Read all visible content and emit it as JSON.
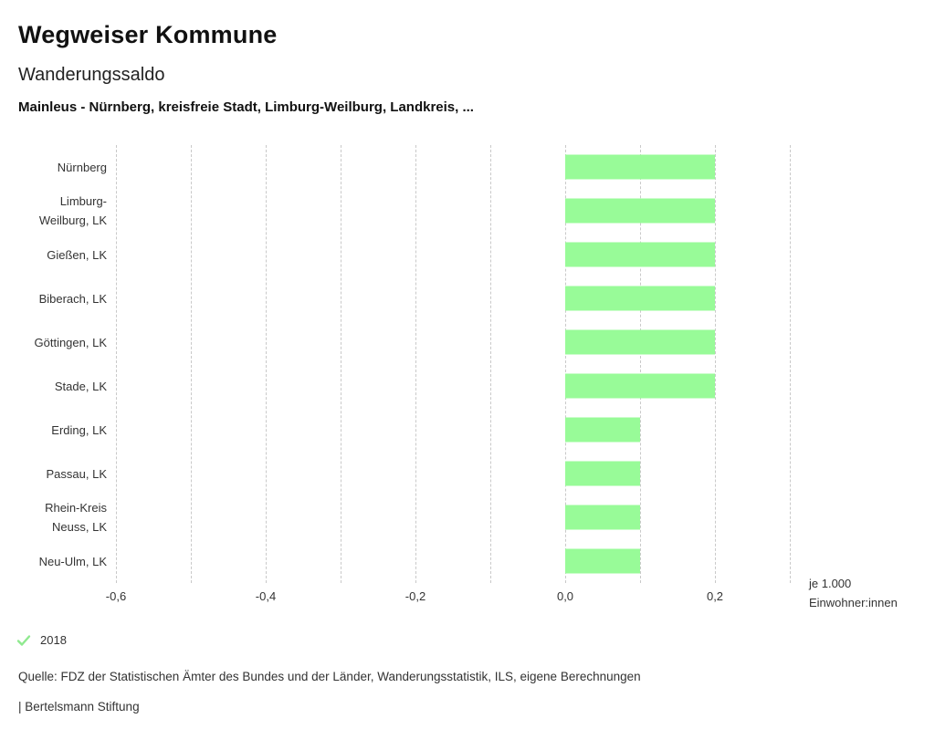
{
  "header": {
    "title": "Wegweiser Kommune",
    "subtitle": "Wanderungssaldo",
    "description": "Mainleus - Nürnberg, kreisfreie Stadt, Limburg-Weilburg, Landkreis, ..."
  },
  "chart_data": {
    "type": "bar",
    "orientation": "horizontal",
    "title": "Wanderungssaldo",
    "categories": [
      "Nürnberg",
      "Limburg-\nWeilburg, LK",
      "Gießen, LK",
      "Biberach, LK",
      "Göttingen, LK",
      "Stade, LK",
      "Erding, LK",
      "Passau, LK",
      "Rhein-Kreis\nNeuss, LK",
      "Neu-Ulm, LK"
    ],
    "series": [
      {
        "name": "2018",
        "values": [
          0.2,
          0.2,
          0.2,
          0.2,
          0.2,
          0.2,
          0.1,
          0.1,
          0.1,
          0.1
        ]
      }
    ],
    "xlim": [
      -0.6,
      0.3
    ],
    "grid_step": 0.1,
    "grid": true,
    "ticks": [
      {
        "value": -0.6,
        "label": "-0,6"
      },
      {
        "value": -0.4,
        "label": "-0,4"
      },
      {
        "value": -0.2,
        "label": "-0,2"
      },
      {
        "value": 0.0,
        "label": "0,0"
      },
      {
        "value": 0.2,
        "label": "0,2"
      }
    ],
    "xlabel": "je 1.000\nEinwohner:innen",
    "ylabel": "",
    "bar_color": "#98fb98",
    "legend_position": "bottom-left"
  },
  "legend": {
    "year": "2018",
    "check_color": "#8fe98f"
  },
  "footer": {
    "source": "Quelle: FDZ der Statistischen Ämter des Bundes und der Länder, Wanderungsstatistik, ILS, eigene Berechnungen",
    "branding": "| Bertelsmann Stiftung"
  }
}
